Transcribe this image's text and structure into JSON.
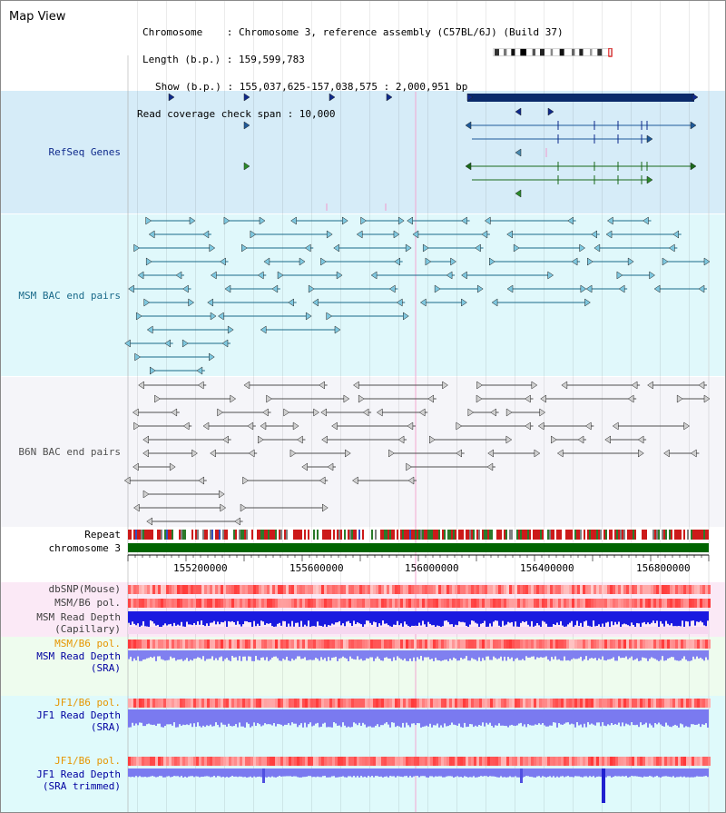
{
  "view": {
    "title": "Map View"
  },
  "info": {
    "chromosome": "Chromosome    : Chromosome 3, reference assembly (C57BL/6J) (Build 37)",
    "length": "Length (b.p.) : 159,599,783",
    "show": "Show (b.p.) : 155,037,625-157,038,575 : 2,000,951 bp",
    "coverage": "Read coverage check span : 10,000"
  },
  "tracks": {
    "refseq": {
      "label": "RefSeq Genes",
      "color": "#0f2a8c"
    },
    "msm_bac": {
      "label": "MSM BAC end pairs",
      "color": "#1a6a8a"
    },
    "b6n_bac": {
      "label": "B6N BAC end pairs",
      "color": "#505050"
    },
    "repeat": {
      "label": "Repeat"
    },
    "chromosome": {
      "label": "chromosome 3"
    },
    "dbsnp": {
      "label": "dbSNP(Mouse)"
    },
    "msm_b6_pol": {
      "label": "MSM/B6 pol."
    },
    "msm_depth_cap": {
      "label": "MSM Read Depth\n(Capillary)"
    },
    "msm_b6_pol_2": {
      "label": "MSM/B6 pol."
    },
    "msm_depth_sra": {
      "label": "MSM Read Depth\n(SRA)"
    },
    "jf1_b6_pol": {
      "label": "JF1/B6 pol."
    },
    "jf1_depth_sra": {
      "label": "JF1 Read Depth\n(SRA)"
    },
    "jf1_b6_pol_2": {
      "label": "JF1/B6 pol."
    },
    "jf1_depth_trim": {
      "label": "JF1 Read Depth\n(SRA trimmed)"
    }
  },
  "axis": {
    "ticks": [
      "155200000",
      "155600000",
      "156000000",
      "156400000",
      "156800000"
    ]
  },
  "colors": {
    "refseq_bg": "#d8eefa",
    "msm_bg": "#e0f8fb",
    "b6n_bg": "#f6f6fa",
    "pink_bg": "#fce8f4",
    "green_bg": "#eefcee",
    "cyan_bg": "#e0fafb",
    "chrom_bar": "#006400",
    "orange_label": "#e69500",
    "blue_label": "#0000a0",
    "gray_label": "#404040"
  }
}
